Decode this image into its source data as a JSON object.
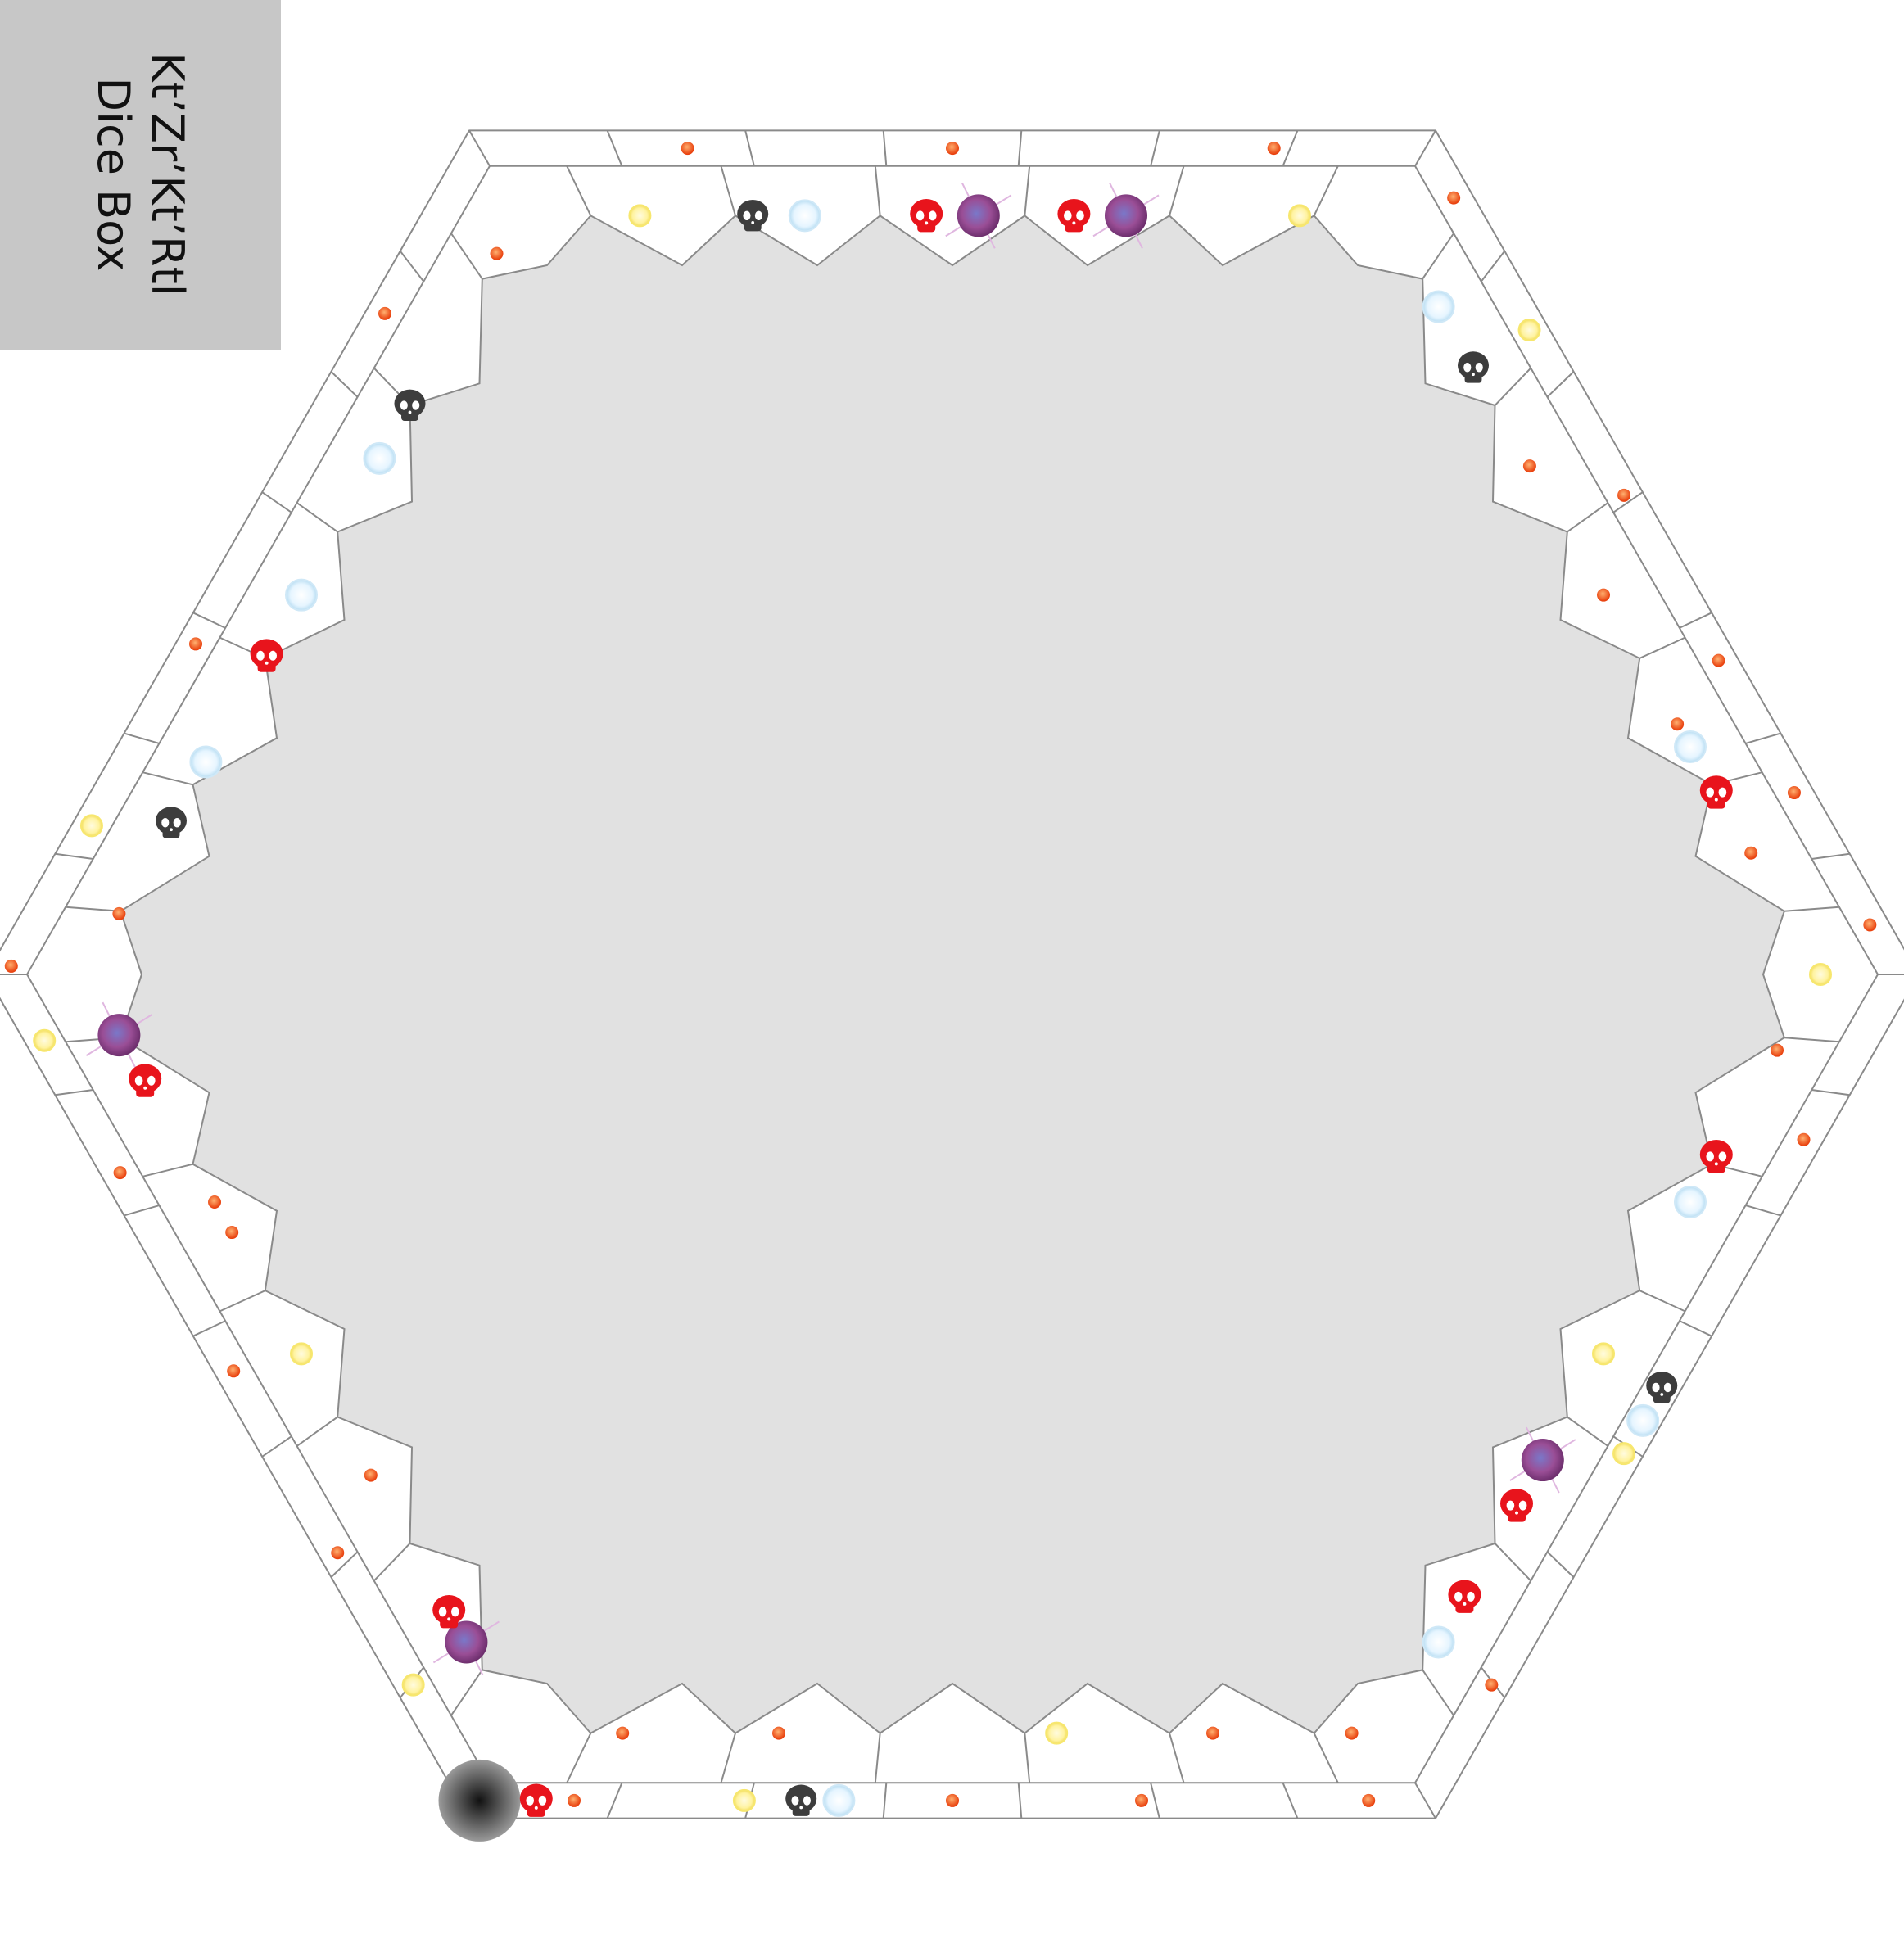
{
  "title": {
    "line1": "Kt’Zr’Kt’Rtl",
    "line2": "Dice Box",
    "background": "#c7c7c7"
  },
  "board": {
    "type": "hexagonal-track",
    "inner_area_color": "#e1e1e1",
    "track_color": "#ffffff",
    "outline_color": "#8a8a8a",
    "outer_ring_spaces": 42,
    "inner_ring_spaces": 36
  },
  "token_types": {
    "orange-dot": {
      "color": "#f15a22",
      "icon": "orange-dot-icon"
    },
    "yellow-orb": {
      "color": "#fff29a",
      "icon": "yellow-orb-icon"
    },
    "blue-orb": {
      "color": "#dff3ff",
      "icon": "blue-orb-icon"
    },
    "red-skull": {
      "color": "#e8141c",
      "icon": "red-skull-icon"
    },
    "black-skull": {
      "color": "#3d3d3d",
      "icon": "black-skull-icon"
    },
    "purple-orb": {
      "color": "#8a4a94",
      "icon": "purple-orb-icon"
    },
    "black-orb": {
      "color": "#2b2b2b",
      "icon": "black-orb-icon"
    }
  },
  "tokens": [
    {
      "type": "orange-dot",
      "ring": "outer",
      "at": 0.06
    },
    {
      "type": "orange-dot",
      "ring": "outer",
      "at": 0.22
    },
    {
      "type": "orange-dot",
      "ring": "outer",
      "at": 0.38
    },
    {
      "type": "orange-dot",
      "ring": "outer",
      "at": 0.58
    },
    {
      "type": "yellow-orb",
      "ring": "outer",
      "at": 0.78
    },
    {
      "type": "orange-dot",
      "ring": "outer",
      "at": 0.94
    },
    {
      "type": "orange-dot",
      "ring": "outer",
      "at": 1.16
    },
    {
      "type": "orange-dot",
      "ring": "outer",
      "at": 1.5
    },
    {
      "type": "orange-dot",
      "ring": "outer",
      "at": 1.78
    },
    {
      "type": "orange-dot",
      "ring": "outer",
      "at": 2.2
    },
    {
      "type": "orange-dot",
      "ring": "outer",
      "at": 2.6
    },
    {
      "type": "yellow-orb",
      "ring": "outer",
      "at": 2.82
    },
    {
      "type": "orange-dot",
      "ring": "outer",
      "at": 2.99
    },
    {
      "type": "yellow-orb",
      "ring": "outer",
      "at": 3.08
    },
    {
      "type": "orange-dot",
      "ring": "outer",
      "at": 3.24
    },
    {
      "type": "orange-dot",
      "ring": "outer",
      "at": 3.48
    },
    {
      "type": "orange-dot",
      "ring": "outer",
      "at": 3.7
    },
    {
      "type": "yellow-orb",
      "ring": "outer",
      "at": 3.86
    },
    {
      "type": "orange-dot",
      "ring": "outer",
      "at": 4.1
    },
    {
      "type": "orange-dot",
      "ring": "outer",
      "at": 4.5
    },
    {
      "type": "orange-dot",
      "ring": "outer",
      "at": 4.7
    },
    {
      "type": "orange-dot",
      "ring": "outer",
      "at": 4.94
    },
    {
      "type": "orange-dot",
      "ring": "outer",
      "at": 5.14
    },
    {
      "type": "yellow-orb",
      "ring": "outer",
      "at": 5.42
    },
    {
      "type": "orange-dot",
      "ring": "outer",
      "at": 5.8
    },
    {
      "type": "orange-dot",
      "ring": "inner",
      "at": 0.33
    },
    {
      "type": "orange-dot",
      "ring": "inner",
      "at": 0.5
    },
    {
      "type": "orange-dot",
      "ring": "inner",
      "at": 0.67
    },
    {
      "type": "blue-orb",
      "ring": "inner",
      "at": 0.88
    },
    {
      "type": "black-skull",
      "ring": "inner",
      "at": 0.8
    },
    {
      "type": "yellow-orb",
      "ring": "inner",
      "at": 1.1
    },
    {
      "type": "purple-orb",
      "ring": "inner",
      "at": 1.3
    },
    {
      "type": "red-skull",
      "ring": "inner",
      "at": 1.36
    },
    {
      "type": "purple-orb",
      "ring": "inner",
      "at": 1.47
    },
    {
      "type": "red-skull",
      "ring": "inner",
      "at": 1.53
    },
    {
      "type": "blue-orb",
      "ring": "inner",
      "at": 1.67
    },
    {
      "type": "black-skull",
      "ring": "inner",
      "at": 1.73
    },
    {
      "type": "yellow-orb",
      "ring": "inner",
      "at": 1.86
    },
    {
      "type": "orange-dot",
      "ring": "inner",
      "at": 2.05
    },
    {
      "type": "black-skull",
      "ring": "inner",
      "at": 2.25
    },
    {
      "type": "blue-orb",
      "ring": "inner",
      "at": 2.32
    },
    {
      "type": "blue-orb",
      "ring": "inner",
      "at": 2.5
    },
    {
      "type": "red-skull",
      "ring": "inner",
      "at": 2.58
    },
    {
      "type": "blue-orb",
      "ring": "inner",
      "at": 2.72
    },
    {
      "type": "black-skull",
      "ring": "inner",
      "at": 2.8
    },
    {
      "type": "orange-dot",
      "ring": "inner",
      "at": 2.92
    },
    {
      "type": "purple-orb",
      "ring": "inner",
      "at": 3.08
    },
    {
      "type": "red-skull",
      "ring": "inner",
      "at": 3.14
    },
    {
      "type": "orange-dot",
      "ring": "inner",
      "at": 3.3
    },
    {
      "type": "purple-orb",
      "ring": "inner",
      "at": 3.88
    },
    {
      "type": "red-skull",
      "ring": "inner",
      "at": 3.84
    },
    {
      "type": "orange-dot",
      "ring": "inner",
      "at": 3.66
    },
    {
      "type": "yellow-orb",
      "ring": "inner",
      "at": 3.5
    },
    {
      "type": "orange-dot",
      "ring": "inner",
      "at": 3.34
    },
    {
      "type": "black-orb",
      "ring": "outer",
      "at": 4.0
    },
    {
      "type": "red-skull",
      "ring": "outer",
      "at": 4.06
    },
    {
      "type": "yellow-orb",
      "ring": "outer",
      "at": 4.28
    },
    {
      "type": "blue-orb",
      "ring": "outer",
      "at": 4.38
    },
    {
      "type": "black-skull",
      "ring": "outer",
      "at": 4.34
    },
    {
      "type": "orange-dot",
      "ring": "inner",
      "at": 4.12
    },
    {
      "type": "orange-dot",
      "ring": "inner",
      "at": 4.3
    },
    {
      "type": "yellow-orb",
      "ring": "inner",
      "at": 4.62
    },
    {
      "type": "orange-dot",
      "ring": "inner",
      "at": 4.8
    },
    {
      "type": "orange-dot",
      "ring": "inner",
      "at": 4.96
    },
    {
      "type": "blue-orb",
      "ring": "inner",
      "at": 5.12
    },
    {
      "type": "red-skull",
      "ring": "inner",
      "at": 5.18
    },
    {
      "type": "red-skull",
      "ring": "inner",
      "at": 5.3
    },
    {
      "type": "purple-orb",
      "ring": "inner",
      "at": 5.36
    },
    {
      "type": "black-skull",
      "ring": "outer",
      "at": 5.5
    },
    {
      "type": "blue-orb",
      "ring": "outer",
      "at": 5.46
    },
    {
      "type": "yellow-orb",
      "ring": "inner",
      "at": 5.5
    },
    {
      "type": "blue-orb",
      "ring": "inner",
      "at": 5.7
    },
    {
      "type": "red-skull",
      "ring": "inner",
      "at": 5.76
    },
    {
      "type": "orange-dot",
      "ring": "inner",
      "at": 5.9
    },
    {
      "type": "yellow-orb",
      "ring": "inner",
      "at": 6.0
    },
    {
      "type": "orange-dot",
      "ring": "inner",
      "at": 6.16
    },
    {
      "type": "blue-orb",
      "ring": "inner",
      "at": 6.3
    },
    {
      "type": "red-skull",
      "ring": "inner",
      "at": 6.24
    }
  ]
}
